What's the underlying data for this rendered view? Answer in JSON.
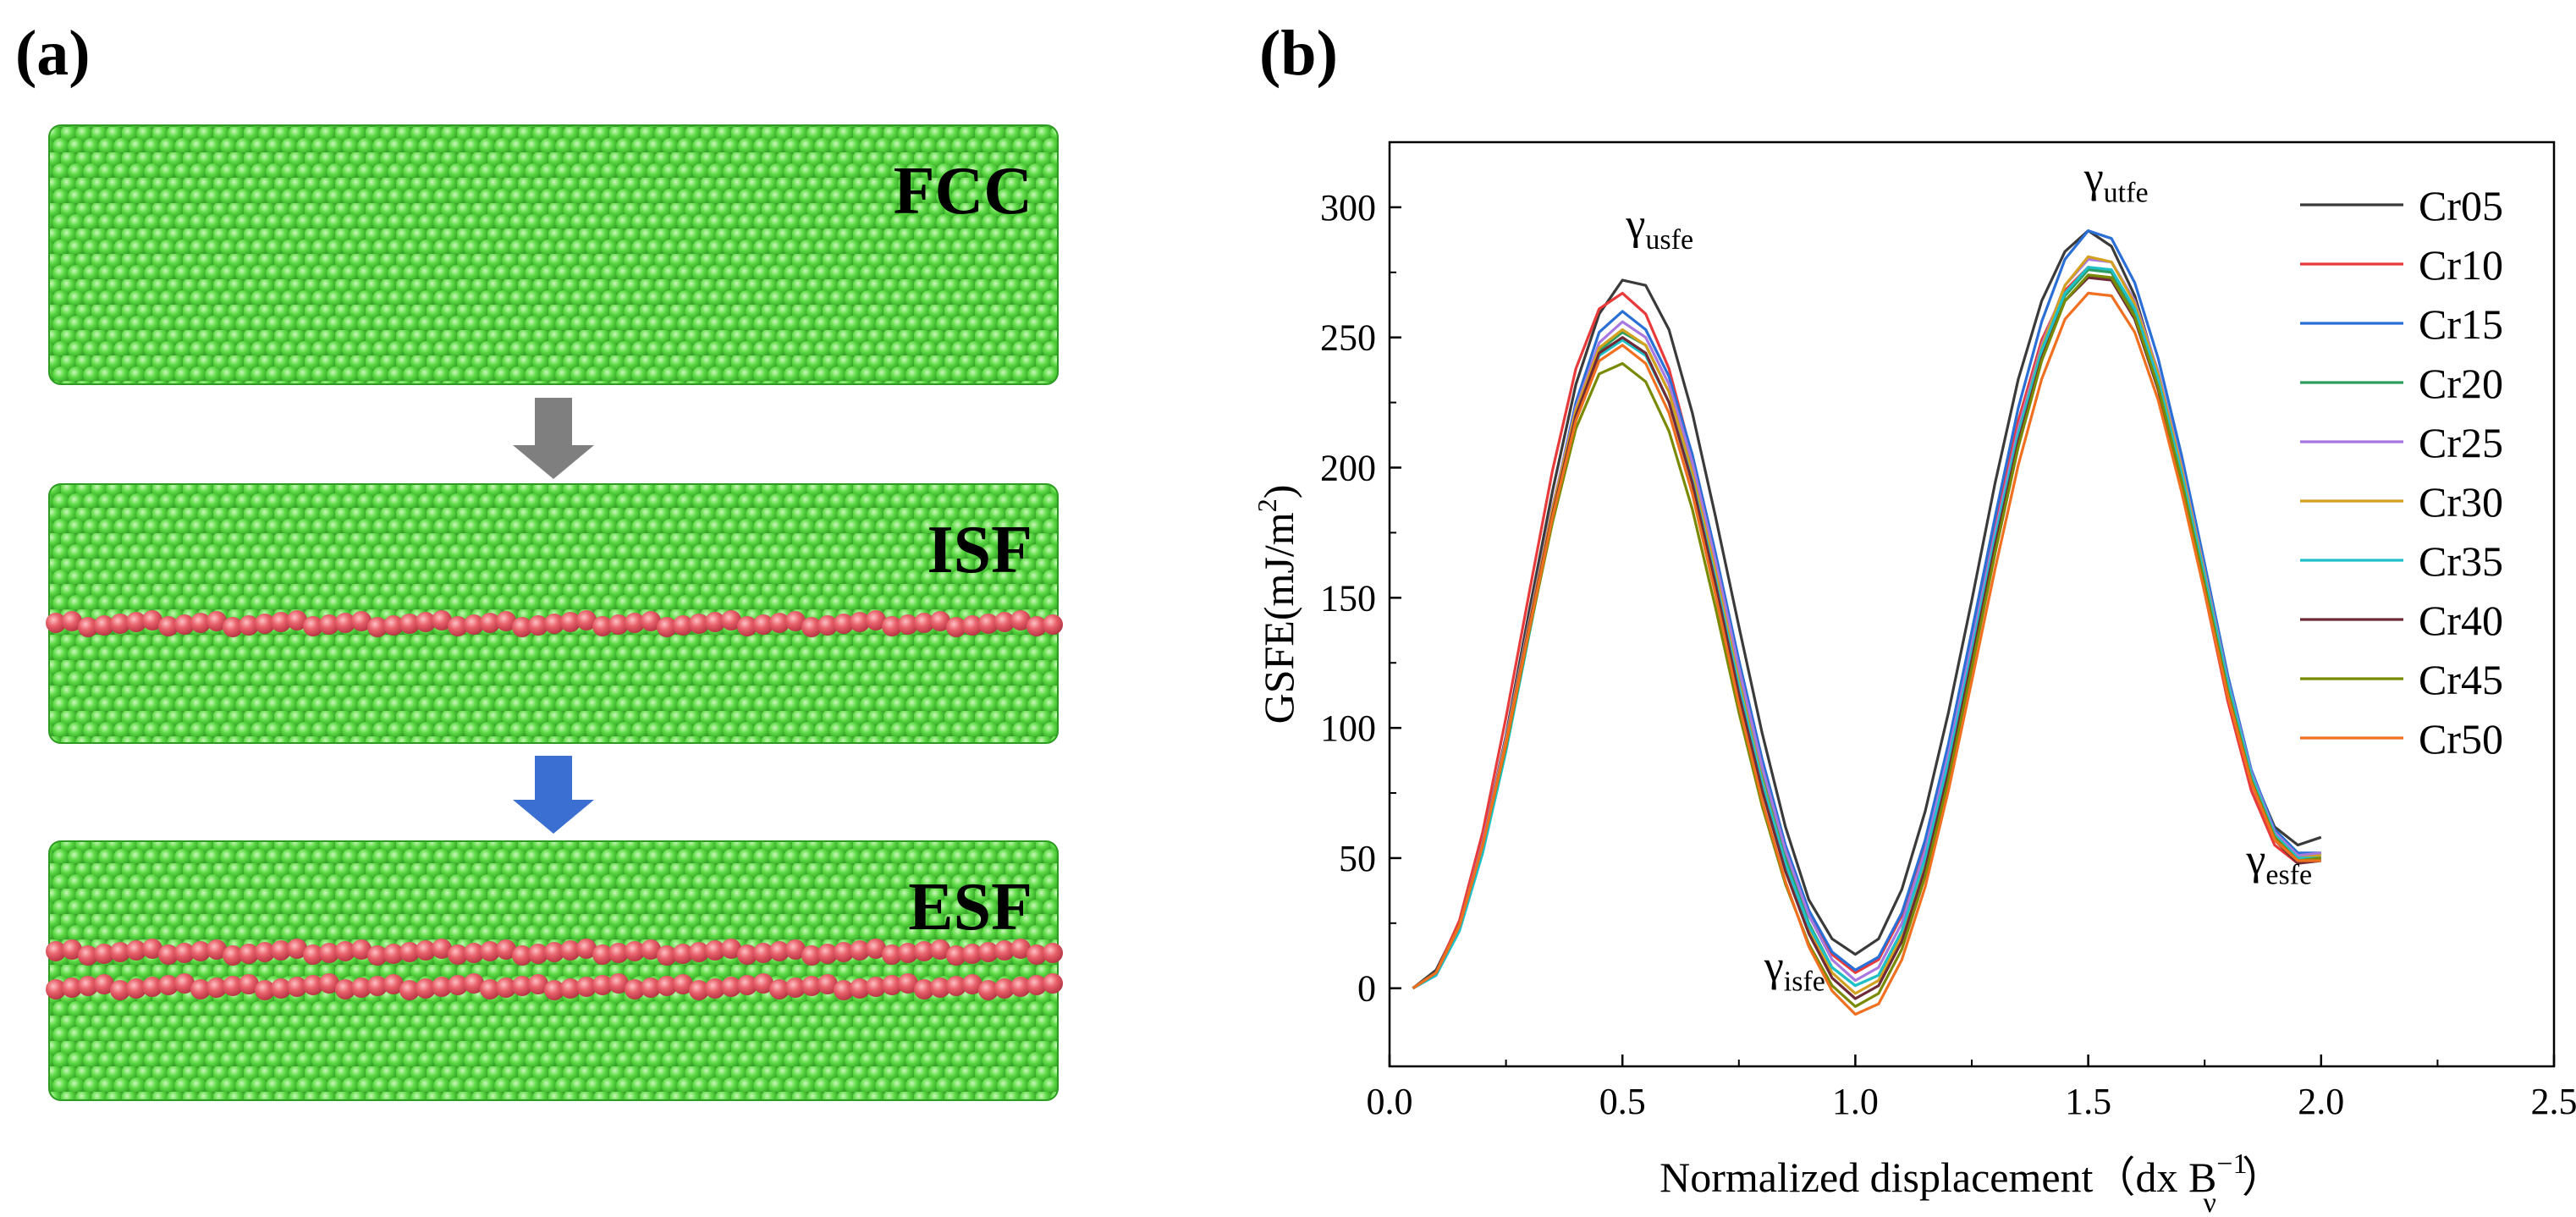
{
  "panel_a": {
    "label": "(a)",
    "slabs": [
      {
        "label": "FCC",
        "fault_rows": 0
      },
      {
        "label": "ISF",
        "fault_rows": 1
      },
      {
        "label": "ESF",
        "fault_rows": 2
      }
    ],
    "colors": {
      "atom": "#5ddb45",
      "atom_dark": "#2e9c22",
      "fault_atom": "#e8606a",
      "fault_dark": "#b23040",
      "arrow1": "#7f7f7f",
      "arrow2": "#3b6fd1"
    }
  },
  "panel_b": {
    "label": "(b)"
  },
  "chart_data": {
    "type": "line",
    "xlabel": "Normalized displacement（dx B",
    "xlabel_sup": "−1",
    "xlabel_sub": "ν",
    "xlabel_close": "）",
    "ylabel": "GSFE(mJ/m",
    "ylabel_sup": "2",
    "ylabel_close": ")",
    "xlim": [
      0,
      2.5
    ],
    "ylim": [
      -30,
      325
    ],
    "xticks": [
      "0.0",
      "0.5",
      "1.0",
      "1.5",
      "2.0",
      "2.5"
    ],
    "yticks": [
      "0",
      "50",
      "100",
      "150",
      "200",
      "250",
      "300"
    ],
    "x": [
      0.05,
      0.1,
      0.15,
      0.2,
      0.25,
      0.3,
      0.35,
      0.4,
      0.45,
      0.5,
      0.55,
      0.6,
      0.65,
      0.7,
      0.75,
      0.8,
      0.85,
      0.9,
      0.95,
      1.0,
      1.05,
      1.1,
      1.15,
      1.2,
      1.25,
      1.3,
      1.35,
      1.4,
      1.45,
      1.5,
      1.55,
      1.6,
      1.65,
      1.7,
      1.75,
      1.8,
      1.85,
      1.9,
      1.95,
      2.0
    ],
    "series": [
      {
        "name": "Cr05",
        "color": "#3a3a3a",
        "values": [
          0,
          7,
          25,
          56,
          97,
          145,
          191,
          232,
          259,
          272,
          270,
          253,
          221,
          181,
          139,
          98,
          62,
          34,
          19,
          13,
          19,
          38,
          68,
          106,
          149,
          194,
          234,
          264,
          283,
          291,
          285,
          266,
          236,
          198,
          155,
          114,
          83,
          62,
          55,
          58
        ]
      },
      {
        "name": "Cr10",
        "color": "#e83a3a",
        "values": [
          0,
          6,
          26,
          60,
          104,
          152,
          199,
          238,
          261,
          267,
          259,
          238,
          204,
          163,
          122,
          84,
          52,
          28,
          13,
          6,
          11,
          28,
          56,
          92,
          134,
          178,
          218,
          249,
          268,
          277,
          275,
          259,
          230,
          194,
          152,
          110,
          76,
          55,
          48,
          50
        ]
      },
      {
        "name": "Cr15",
        "color": "#2a6fd6",
        "values": [
          0,
          5,
          23,
          53,
          92,
          138,
          184,
          225,
          252,
          260,
          253,
          235,
          205,
          167,
          126,
          88,
          55,
          30,
          14,
          7,
          12,
          29,
          57,
          94,
          137,
          181,
          223,
          256,
          280,
          291,
          288,
          271,
          242,
          205,
          163,
          120,
          84,
          61,
          52,
          52
        ]
      },
      {
        "name": "Cr20",
        "color": "#2e9e60",
        "values": [
          0,
          6,
          24,
          55,
          94,
          139,
          183,
          221,
          245,
          252,
          247,
          229,
          199,
          161,
          120,
          82,
          50,
          25,
          8,
          1,
          5,
          22,
          50,
          87,
          129,
          172,
          212,
          244,
          266,
          276,
          275,
          260,
          233,
          197,
          157,
          116,
          82,
          60,
          51,
          52
        ]
      },
      {
        "name": "Cr25",
        "color": "#a678e0",
        "values": [
          0,
          6,
          24,
          56,
          96,
          141,
          185,
          223,
          248,
          256,
          250,
          232,
          202,
          164,
          123,
          85,
          53,
          28,
          11,
          3,
          8,
          25,
          53,
          90,
          132,
          175,
          215,
          247,
          270,
          280,
          279,
          264,
          237,
          201,
          160,
          118,
          83,
          60,
          51,
          52
        ]
      },
      {
        "name": "Cr30",
        "color": "#d4a020",
        "values": [
          0,
          6,
          24,
          55,
          95,
          140,
          184,
          222,
          246,
          253,
          247,
          229,
          198,
          160,
          118,
          80,
          48,
          23,
          6,
          -2,
          3,
          20,
          48,
          85,
          128,
          172,
          213,
          246,
          270,
          281,
          279,
          263,
          236,
          200,
          159,
          117,
          82,
          59,
          50,
          51
        ]
      },
      {
        "name": "Cr35",
        "color": "#20c0c8",
        "values": [
          0,
          5,
          22,
          52,
          91,
          136,
          181,
          219,
          243,
          249,
          243,
          225,
          195,
          157,
          116,
          79,
          48,
          24,
          8,
          1,
          5,
          22,
          50,
          87,
          129,
          173,
          213,
          245,
          267,
          277,
          276,
          261,
          234,
          198,
          158,
          117,
          82,
          59,
          50,
          50
        ]
      },
      {
        "name": "Cr40",
        "color": "#6e2a36",
        "values": [
          0,
          6,
          24,
          55,
          94,
          139,
          182,
          220,
          244,
          250,
          244,
          225,
          194,
          155,
          113,
          76,
          45,
          21,
          4,
          -4,
          1,
          18,
          46,
          83,
          126,
          170,
          210,
          242,
          264,
          273,
          272,
          257,
          230,
          194,
          154,
          113,
          79,
          57,
          48,
          49
        ]
      },
      {
        "name": "Cr45",
        "color": "#7a8a00",
        "values": [
          0,
          6,
          24,
          55,
          93,
          137,
          179,
          215,
          236,
          240,
          233,
          214,
          184,
          146,
          106,
          70,
          40,
          17,
          1,
          -7,
          -2,
          15,
          43,
          80,
          123,
          167,
          208,
          241,
          264,
          274,
          273,
          258,
          231,
          195,
          155,
          114,
          80,
          58,
          49,
          50
        ]
      },
      {
        "name": "Cr50",
        "color": "#f07020",
        "values": [
          0,
          6,
          24,
          55,
          94,
          138,
          181,
          218,
          241,
          247,
          240,
          221,
          190,
          151,
          109,
          72,
          41,
          16,
          -1,
          -10,
          -6,
          11,
          39,
          76,
          118,
          161,
          201,
          234,
          257,
          267,
          266,
          252,
          226,
          191,
          152,
          112,
          79,
          57,
          49,
          49
        ]
      }
    ],
    "annotations": [
      {
        "id": "usfe",
        "base": "γ",
        "sub": "usfe",
        "x": 0.58,
        "y": 288
      },
      {
        "id": "utfe",
        "base": "γ",
        "sub": "utfe",
        "x": 1.56,
        "y": 306
      },
      {
        "id": "isfe",
        "base": "γ",
        "sub": "isfe",
        "x": 0.87,
        "y": 3
      },
      {
        "id": "esfe",
        "base": "γ",
        "sub": "esfe",
        "x": 1.91,
        "y": 44
      }
    ],
    "legend_position": "top-right"
  }
}
